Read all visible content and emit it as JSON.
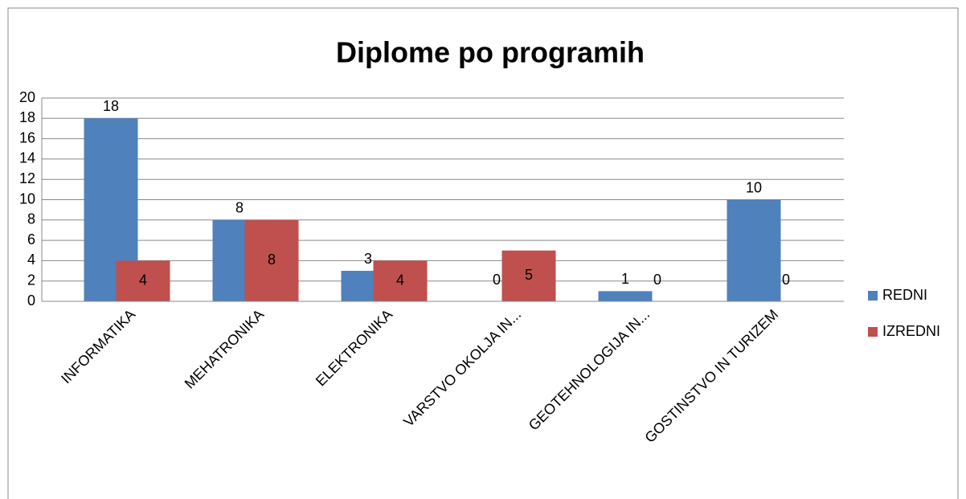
{
  "chart_data": {
    "type": "bar",
    "title": "Diplome po programih",
    "categories": [
      "INFORMATIKA",
      "MEHATRONIKA",
      "ELEKTRONIKA",
      "VARSTVO OKOLJA IN...",
      "GEOTEHNOLOGIJA IN...",
      "GOSTINSTVO IN TURIZEM"
    ],
    "series": [
      {
        "name": "REDNI",
        "color": "#4f81bd",
        "values": [
          18,
          8,
          3,
          0,
          1,
          10
        ]
      },
      {
        "name": "IZREDNI",
        "color": "#c0504d",
        "values": [
          4,
          8,
          4,
          5,
          0,
          0
        ]
      }
    ],
    "ylim": [
      0,
      20
    ],
    "yticks": [
      0,
      2,
      4,
      6,
      8,
      10,
      12,
      14,
      16,
      18,
      20
    ],
    "grid": true,
    "legend": "right"
  }
}
